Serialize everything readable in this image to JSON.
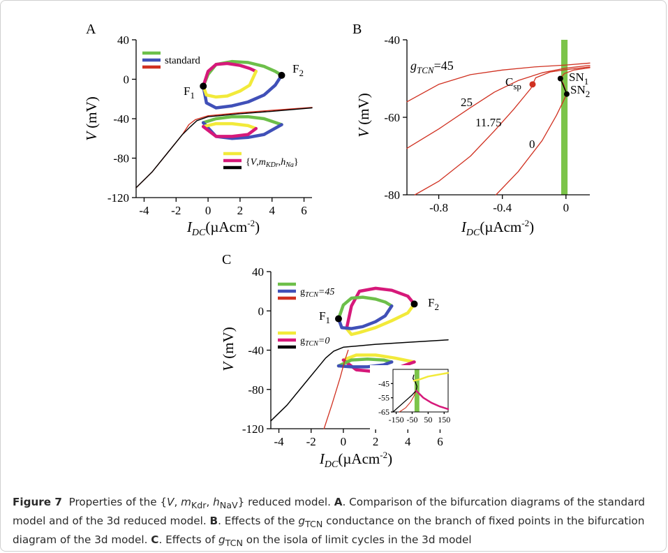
{
  "figure": {
    "caption": {
      "figure_label": "Figure 7",
      "text_1": "Properties of the {",
      "v": "V",
      "m": "m",
      "m_sub": "Kdr",
      "h": "h",
      "h_sub": "NaV",
      "text_2": "} reduced model.",
      "a_label": "A",
      "a_text": ". Comparison of the bifurcation diagrams of the standard model and of the 3d reduced model.",
      "b_label": "B",
      "b_text_1": ". Effects of the",
      "g": "g",
      "g_sub": "TCN",
      "b_text_2": "conductance on the branch of fixed points in the bifurcation diagram of the 3d model.",
      "c_label": "C",
      "c_text_1": ". Effects of",
      "c_text_2": "on the isola of limit cycles in the 3d model"
    }
  },
  "colors": {
    "green": "#6dbf4a",
    "blue": "#4050b8",
    "red": "#d03020",
    "yellow": "#f2ea3a",
    "magenta": "#d6197a",
    "black": "#000000",
    "sn_band": "#7cc44a"
  },
  "chart_data": [
    {
      "panel": "A",
      "type": "line",
      "xlabel_base": "I",
      "xlabel_sub": "DC",
      "xlabel_unit": "(µAcm",
      "xlabel_sup": "-2",
      "xlabel_close": ")",
      "ylabel_italic": "V",
      "ylabel_unit": "(mV)",
      "xlim": [
        -4.5,
        6.5
      ],
      "ylim": [
        -120,
        40
      ],
      "xticks": [
        "-4",
        "-2",
        "0",
        "2",
        "4",
        "6"
      ],
      "xtick_values": [
        -4,
        -2,
        0,
        2,
        4,
        6
      ],
      "yticks": [
        "40",
        "0",
        "-40",
        "-80",
        "-120"
      ],
      "ytick_values": [
        40,
        0,
        -40,
        -80,
        -120
      ],
      "legend_standard": "standard",
      "legend_reduced_open": "{",
      "legend_reduced_v": "V",
      "legend_reduced_m": "m",
      "legend_reduced_m_sub": "KDr",
      "legend_reduced_h": "h",
      "legend_reduced_h_sub": "Na",
      "legend_reduced_close": "}",
      "point_f1": "F",
      "point_f1_sub": "1",
      "point_f2": "F",
      "point_f2_sub": "2",
      "f1": [
        -0.3,
        -7
      ],
      "f2": [
        4.6,
        4
      ],
      "fixed_points_standard": {
        "x": [
          -4.5,
          -3.5,
          -2.5,
          -1.6,
          -1.2,
          -0.8,
          0,
          2,
          4,
          6.5
        ],
        "y": [
          -110,
          -94,
          -74,
          -56,
          -46,
          -41,
          -37,
          -34,
          -31.5,
          -28.5
        ]
      },
      "fixed_points_reduced": {
        "x": [
          -4.5,
          -3.5,
          -2.5,
          -1.6,
          -1.1,
          -0.7,
          0,
          2,
          4,
          6.5
        ],
        "y": [
          -110,
          -94,
          -74,
          -56,
          -48,
          -42,
          -38,
          -35,
          -32.5,
          -29
        ]
      },
      "standard_max": {
        "x": [
          -0.3,
          0,
          0.5,
          1.5,
          2.5,
          3.5,
          4.2,
          4.6
        ],
        "y": [
          -7,
          5,
          15,
          18,
          17,
          13,
          8,
          4
        ]
      },
      "standard_min": {
        "x": [
          -0.3,
          -0.1,
          0.5,
          1.5,
          2.5,
          3.5,
          4.2,
          4.6
        ],
        "y": [
          -7,
          -24,
          -29,
          -27,
          -23,
          -16,
          -6,
          4
        ]
      },
      "standard_low_cycle_max": {
        "x": [
          -0.3,
          0.5,
          1.5,
          2.5,
          3.5,
          4.6
        ],
        "y": [
          -44,
          -40,
          -38,
          -38,
          -40,
          -46
        ]
      },
      "standard_low_cycle_min": {
        "x": [
          -0.3,
          0.5,
          1.5,
          2.5,
          3.5,
          4.6
        ],
        "y": [
          -44,
          -58,
          -60,
          -59,
          -56,
          -46
        ]
      },
      "reduced_max": {
        "x": [
          -0.3,
          0,
          0.5,
          1.2,
          2,
          2.6,
          3
        ],
        "y": [
          -7,
          8,
          15,
          16,
          14,
          11,
          8
        ]
      },
      "reduced_min": {
        "x": [
          -0.3,
          -0.1,
          0.5,
          1.2,
          2,
          2.6,
          3
        ],
        "y": [
          -7,
          -16,
          -18,
          -17,
          -12,
          -6,
          8
        ]
      },
      "reduced_low_cycle_max": {
        "x": [
          -0.3,
          0.5,
          1.5,
          2.5,
          3
        ],
        "y": [
          -48,
          -45,
          -45,
          -47,
          -50
        ]
      },
      "reduced_low_cycle_min": {
        "x": [
          -0.3,
          0.5,
          1.5,
          2.5,
          3
        ],
        "y": [
          -48,
          -58,
          -58,
          -56,
          -50
        ]
      }
    },
    {
      "panel": "B",
      "type": "line",
      "xlabel_base": "I",
      "xlabel_sub": "DC",
      "xlabel_unit": "(µAcm",
      "xlabel_sup": "-2",
      "xlabel_close": ")",
      "ylabel_italic": "V",
      "ylabel_unit": "(mV)",
      "xlim": [
        -1.0,
        0.15
      ],
      "ylim": [
        -80,
        -40
      ],
      "xticks": [
        "-0.8",
        "-0.4",
        "0"
      ],
      "xtick_values": [
        -0.8,
        -0.4,
        0
      ],
      "yticks": [
        "-40",
        "-60",
        "-80"
      ],
      "ytick_values": [
        -40,
        -60,
        -80
      ],
      "sn_band_x": [
        -0.03,
        0.01
      ],
      "gtcn_label_g": "g",
      "gtcn_label_sub": "TCN",
      "gtcn_label_value": "=45",
      "label_25": "25",
      "label_1175": "11.75",
      "label_0": "0",
      "csp_label": "C",
      "csp_label_sub": "sp",
      "sn1_label": "SN",
      "sn1_label_sub": "1",
      "sn2_label": "SN",
      "sn2_label_sub": "2",
      "csp": [
        -0.21,
        -51.5
      ],
      "sn1": [
        -0.035,
        -50
      ],
      "sn2": [
        0.005,
        -54
      ],
      "series": [
        {
          "name": "45",
          "x": [
            -1.0,
            -0.8,
            -0.6,
            -0.4,
            -0.2,
            0,
            0.15
          ],
          "y": [
            -56,
            -51.5,
            -49,
            -47.8,
            -47,
            -46.5,
            -46
          ]
        },
        {
          "name": "25",
          "x": [
            -1.0,
            -0.8,
            -0.6,
            -0.45,
            -0.3,
            -0.15,
            0,
            0.15
          ],
          "y": [
            -68,
            -63,
            -57.5,
            -53.5,
            -50.5,
            -48.5,
            -47.3,
            -46.6
          ]
        },
        {
          "name": "11.75",
          "x": [
            -0.95,
            -0.8,
            -0.6,
            -0.45,
            -0.33,
            -0.26,
            -0.22,
            -0.21,
            -0.19,
            -0.1,
            0,
            0.15
          ],
          "y": [
            -80,
            -76.5,
            -70,
            -63.5,
            -58,
            -54.5,
            -52.5,
            -51.5,
            -49.8,
            -48.3,
            -47.7,
            -47
          ]
        },
        {
          "name": "0",
          "x": [
            -0.44,
            -0.3,
            -0.15,
            -0.06,
            0.005,
            -0.015,
            -0.035,
            -0.01,
            0.05,
            0.15
          ],
          "y": [
            -80,
            -74,
            -66,
            -59.5,
            -54,
            -51.5,
            -50,
            -48.7,
            -47.8,
            -47.2
          ]
        }
      ]
    },
    {
      "panel": "C",
      "type": "line",
      "xlabel_base": "I",
      "xlabel_sub": "DC",
      "xlabel_unit": "(µAcm",
      "xlabel_sup": "-2",
      "xlabel_close": ")",
      "ylabel_italic": "V",
      "ylabel_unit": "(mV)",
      "xlim": [
        -4.5,
        6.5
      ],
      "ylim": [
        -120,
        40
      ],
      "xticks": [
        "-4",
        "-2",
        "0",
        "2",
        "4",
        "6"
      ],
      "xtick_values": [
        -4,
        -2,
        0,
        2,
        4,
        6
      ],
      "yticks": [
        "40",
        "0",
        "-40",
        "-80",
        "-120"
      ],
      "ytick_values": [
        40,
        0,
        -40,
        -80,
        -120
      ],
      "legend_45_g": "g",
      "legend_45_sub": "TCN",
      "legend_45_value": "=45",
      "legend_0_g": "g",
      "legend_0_sub": "TCN",
      "legend_0_value": "=0",
      "point_f1": "F",
      "point_f1_sub": "1",
      "point_f2": "F",
      "point_f2_sub": "2",
      "f1": [
        -0.3,
        -8
      ],
      "f2": [
        4.4,
        7
      ],
      "fixed_points_45": {
        "x": [
          -4.5,
          -3.5,
          -2.5,
          -1.6,
          -1.1,
          -0.6,
          0,
          2,
          4,
          6.5
        ],
        "y": [
          -112,
          -96,
          -76,
          -58,
          -48,
          -41,
          -37,
          -34,
          -32,
          -29.5
        ]
      },
      "fixed_points_0": {
        "x": [
          -1.2,
          -0.7,
          -0.2,
          0.1,
          0.3
        ],
        "y": [
          -120,
          -95,
          -68,
          -50,
          -40
        ]
      },
      "gtcn45_max": {
        "x": [
          -0.3,
          0,
          0.5,
          1.2,
          2,
          2.6,
          3
        ],
        "y": [
          -8,
          6,
          13,
          14,
          12,
          9,
          5
        ]
      },
      "gtcn45_min": {
        "x": [
          -0.3,
          -0.1,
          0.5,
          1.2,
          2,
          2.6,
          3
        ],
        "y": [
          -8,
          -17,
          -18,
          -16,
          -11,
          -5,
          5
        ]
      },
      "gtcn45_low_max": {
        "x": [
          -0.3,
          0.5,
          1.5,
          2.5,
          3
        ],
        "y": [
          -56,
          -50,
          -49,
          -50,
          -52
        ]
      },
      "gtcn45_low_min": {
        "x": [
          -0.3,
          0.5,
          1.5,
          2.5,
          3
        ],
        "y": [
          -56,
          -57,
          -57,
          -55,
          -52
        ]
      },
      "gtcn0_max": {
        "x": [
          0.2,
          0.5,
          1,
          2,
          3,
          4,
          4.4
        ],
        "y": [
          -18,
          5,
          20,
          23,
          21,
          15,
          7
        ]
      },
      "gtcn0_min": {
        "x": [
          0.2,
          0.5,
          1,
          2,
          3,
          4,
          4.4
        ],
        "y": [
          -18,
          -24,
          -22,
          -17,
          -10,
          -2,
          7
        ]
      },
      "gtcn0_low_max": {
        "x": [
          0,
          0.8,
          2,
          3.2,
          4.4
        ],
        "y": [
          -50,
          -45,
          -45,
          -48,
          -52
        ]
      },
      "gtcn0_low_min": {
        "x": [
          0,
          0.8,
          2,
          3.2,
          4.4
        ],
        "y": [
          -50,
          -60,
          -62,
          -59,
          -52
        ]
      },
      "inset": {
        "xlim": [
          -170,
          175
        ],
        "ylim": [
          -65,
          -35
        ],
        "xticks": [
          "-150",
          "-50",
          "50",
          "150"
        ],
        "xtick_values": [
          -150,
          -50,
          50,
          150
        ],
        "yticks": [
          "-45",
          "-55",
          "-65"
        ],
        "ytick_values": [
          -45,
          -55,
          -65
        ],
        "band_x": [
          -35,
          -5
        ],
        "black_curve": {
          "x": [
            -170,
            -100,
            -50,
            -25,
            -20,
            -30,
            -45,
            -40
          ],
          "y": [
            -65,
            -58,
            -53,
            -50,
            -47,
            -44,
            -41.5,
            -39
          ]
        },
        "yellow_curve": {
          "x": [
            -40,
            0,
            50,
            100,
            175
          ],
          "y": [
            -43,
            -42,
            -40,
            -39,
            -37.5
          ]
        },
        "magenta_curve": {
          "x": [
            -25,
            20,
            70,
            120,
            175
          ],
          "y": [
            -50,
            -55,
            -58.5,
            -61,
            -63
          ]
        },
        "red_curve": {
          "x": [
            -130,
            -90,
            -60,
            -40,
            -25
          ],
          "y": [
            -65,
            -62,
            -58,
            -54,
            -50
          ]
        }
      }
    }
  ]
}
